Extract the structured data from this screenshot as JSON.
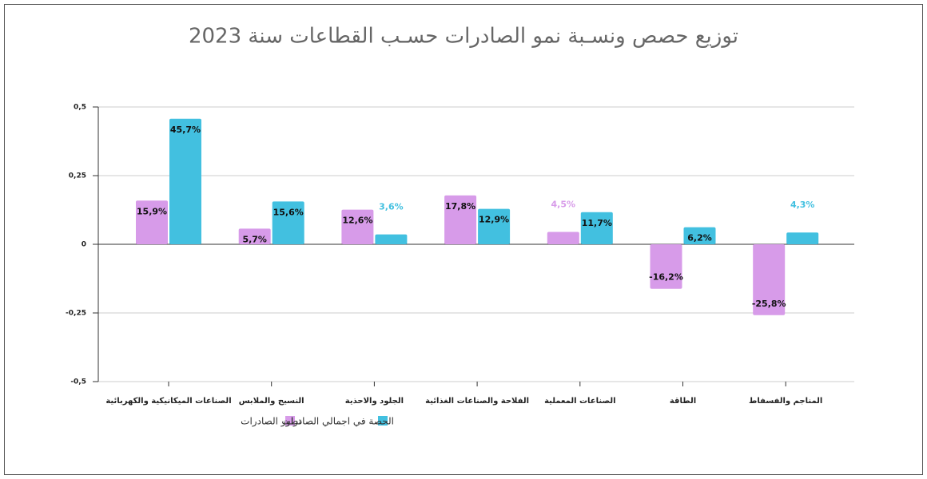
{
  "chart_data": {
    "type": "bar",
    "title": "توزيع حصص ونسـبة نمو الصادرات حسـب القطاعات سنة 2023",
    "categories": [
      "الصناعات الميكانيكية والكهربائية",
      "النسيج والملابس",
      "الجلود والاحذية",
      "الفلاحة والصناعات الغذائية",
      "الصناعات المعملية",
      "الطاقة",
      "المناجم والفسفاط"
    ],
    "series": [
      {
        "name": "تطور الصادرات",
        "color": "#d79be9",
        "values": [
          0.159,
          0.057,
          0.126,
          0.178,
          0.045,
          -0.162,
          -0.258
        ],
        "value_labels": [
          "15,9%",
          "5,7%",
          "12,6%",
          "17,8%",
          "4,5%",
          "-16,2%",
          "-25,8%"
        ]
      },
      {
        "name": "الحصة في اجمالي الصادرات",
        "color": "#42c0e0",
        "values": [
          0.457,
          0.156,
          0.036,
          0.129,
          0.117,
          0.062,
          0.043
        ],
        "value_labels": [
          "45,7%",
          "15,6%",
          "3,6%",
          "12,9%",
          "11,7%",
          "6,2%",
          "4,3%"
        ]
      }
    ],
    "ylim": [
      -0.5,
      0.5
    ],
    "yticks": [
      {
        "value": -0.5,
        "label": "-0,5"
      },
      {
        "value": -0.25,
        "label": "-0,25"
      },
      0,
      {
        "value": 0.25,
        "label": "0,25"
      },
      {
        "value": 0.5,
        "label": "0,5"
      }
    ],
    "grid": true
  }
}
